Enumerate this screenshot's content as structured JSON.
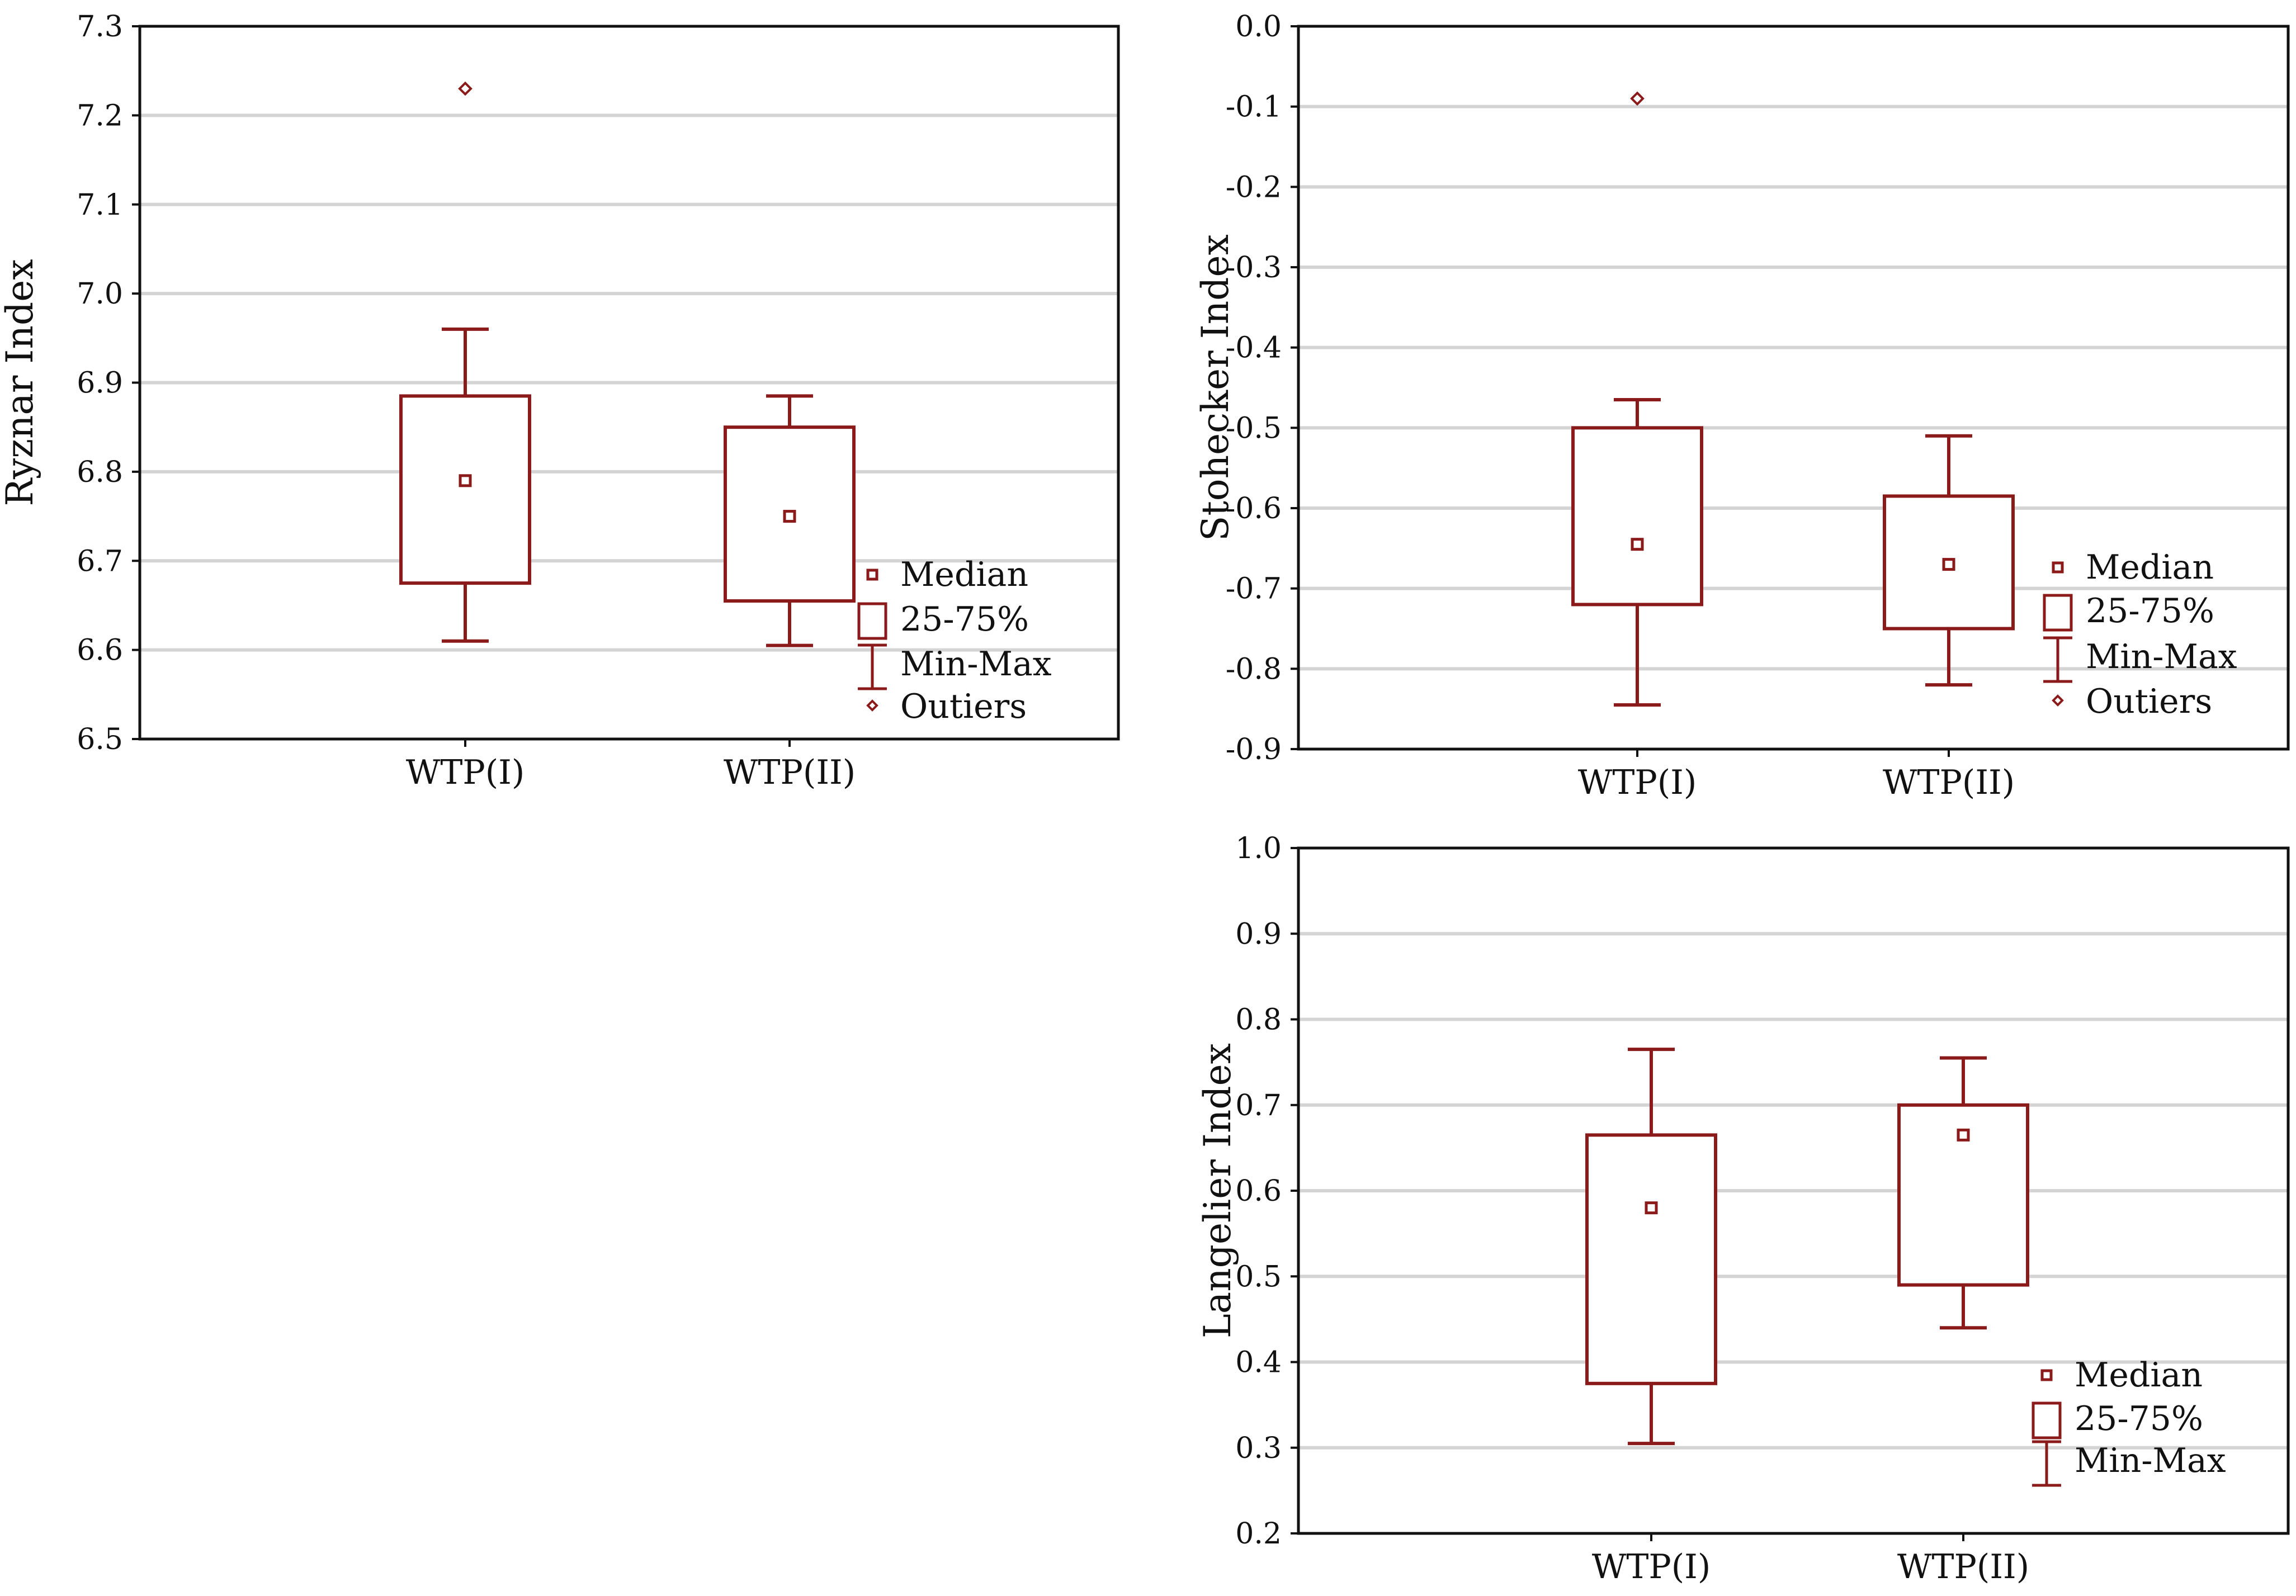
{
  "colors": {
    "box": "#8b1a1a",
    "grid": "#d4d4d4",
    "axis": "#111111"
  },
  "chart_data": [
    {
      "id": "ryznar",
      "type": "box",
      "ylabel": "Ryznar Index",
      "categories": [
        "WTP(I)",
        "WTP(II)"
      ],
      "ylim": [
        6.5,
        7.3
      ],
      "yticks": [
        "6.5",
        "6.6",
        "6.7",
        "6.8",
        "6.9",
        "7.0",
        "7.1",
        "7.2",
        "7.3"
      ],
      "boxes": [
        {
          "name": "WTP(I)",
          "min": 6.61,
          "q1": 6.675,
          "median": 6.79,
          "q3": 6.885,
          "max": 6.96,
          "outliers": [
            7.23
          ]
        },
        {
          "name": "WTP(II)",
          "min": 6.605,
          "q1": 6.655,
          "median": 6.75,
          "q3": 6.85,
          "max": 6.885,
          "outliers": []
        }
      ],
      "legend": [
        "Median",
        "25-75%",
        "Min-Max",
        "Outiers"
      ]
    },
    {
      "id": "stohecker",
      "type": "box",
      "ylabel": "Stohecker Index",
      "categories": [
        "WTP(I)",
        "WTP(II)"
      ],
      "ylim": [
        -0.9,
        0.0
      ],
      "yticks": [
        "0.0",
        "-0.1",
        "-0.2",
        "-0.3",
        "-0.4",
        "-0.5",
        "-0.6",
        "-0.7",
        "-0.8",
        "-0.9"
      ],
      "boxes": [
        {
          "name": "WTP(I)",
          "min": -0.845,
          "q1": -0.72,
          "median": -0.645,
          "q3": -0.5,
          "max": -0.465,
          "outliers": [
            -0.09
          ]
        },
        {
          "name": "WTP(II)",
          "min": -0.82,
          "q1": -0.75,
          "median": -0.67,
          "q3": -0.585,
          "max": -0.51,
          "outliers": []
        }
      ],
      "legend": [
        "Median",
        "25-75%",
        "Min-Max",
        "Outiers"
      ]
    },
    {
      "id": "langelier",
      "type": "box",
      "ylabel": "Langelier Index",
      "categories": [
        "WTP(I)",
        "WTP(II)"
      ],
      "ylim": [
        0.2,
        1.0
      ],
      "yticks": [
        "0.2",
        "0.3",
        "0.4",
        "0.5",
        "0.6",
        "0.7",
        "0.8",
        "0.9",
        "1.0"
      ],
      "boxes": [
        {
          "name": "WTP(I)",
          "min": 0.305,
          "q1": 0.375,
          "median": 0.58,
          "q3": 0.665,
          "max": 0.765,
          "outliers": []
        },
        {
          "name": "WTP(II)",
          "min": 0.44,
          "q1": 0.49,
          "median": 0.665,
          "q3": 0.7,
          "max": 0.755,
          "outliers": []
        }
      ],
      "legend": [
        "Median",
        "25-75%",
        "Min-Max"
      ]
    }
  ]
}
